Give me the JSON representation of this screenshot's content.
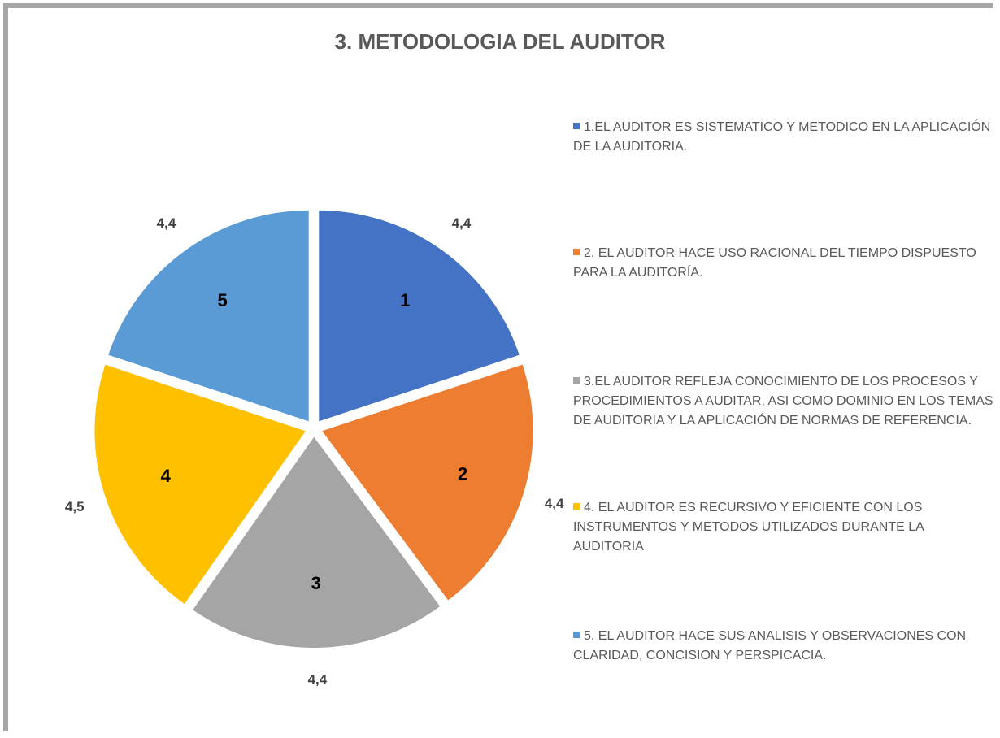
{
  "chart_data": {
    "type": "pie",
    "title": "3. METODOLOGIA DEL AUDITOR",
    "categories": [
      "1.EL AUDITOR ES SISTEMATICO Y METODICO EN LA APLICACIÓN DE LA AUDITORIA.",
      "2. EL AUDITOR HACE USO RACIONAL DEL TIEMPO DISPUESTO PARA LA AUDITORÍA.",
      "3.EL AUDITOR REFLEJA CONOCIMIENTO DE LOS PROCESOS Y PROCEDIMIENTOS A AUDITAR, ASI COMO DOMINIO EN LOS TEMAS DE AUDITORIA Y LA APLICACIÓN DE NORMAS DE REFERENCIA.",
      "4. EL AUDITOR ES RECURSIVO Y EFICIENTE CON LOS INSTRUMENTOS Y METODOS UTILIZADOS DURANTE LA AUDITORIA",
      "5. EL AUDITOR HACE SUS ANALISIS Y OBSERVACIONES CON CLARIDAD, CONCISION Y PERSPICACIA."
    ],
    "slice_labels": [
      "1",
      "2",
      "3",
      "4",
      "5"
    ],
    "values": [
      4.4,
      4.4,
      4.4,
      4.5,
      4.4
    ],
    "value_labels": [
      "4,4",
      "4,4",
      "4,4",
      "4,5",
      "4,4"
    ],
    "colors": [
      "#4472c4",
      "#ed7d31",
      "#a5a5a5",
      "#ffc000",
      "#5b9bd5"
    ],
    "legend": "right"
  }
}
